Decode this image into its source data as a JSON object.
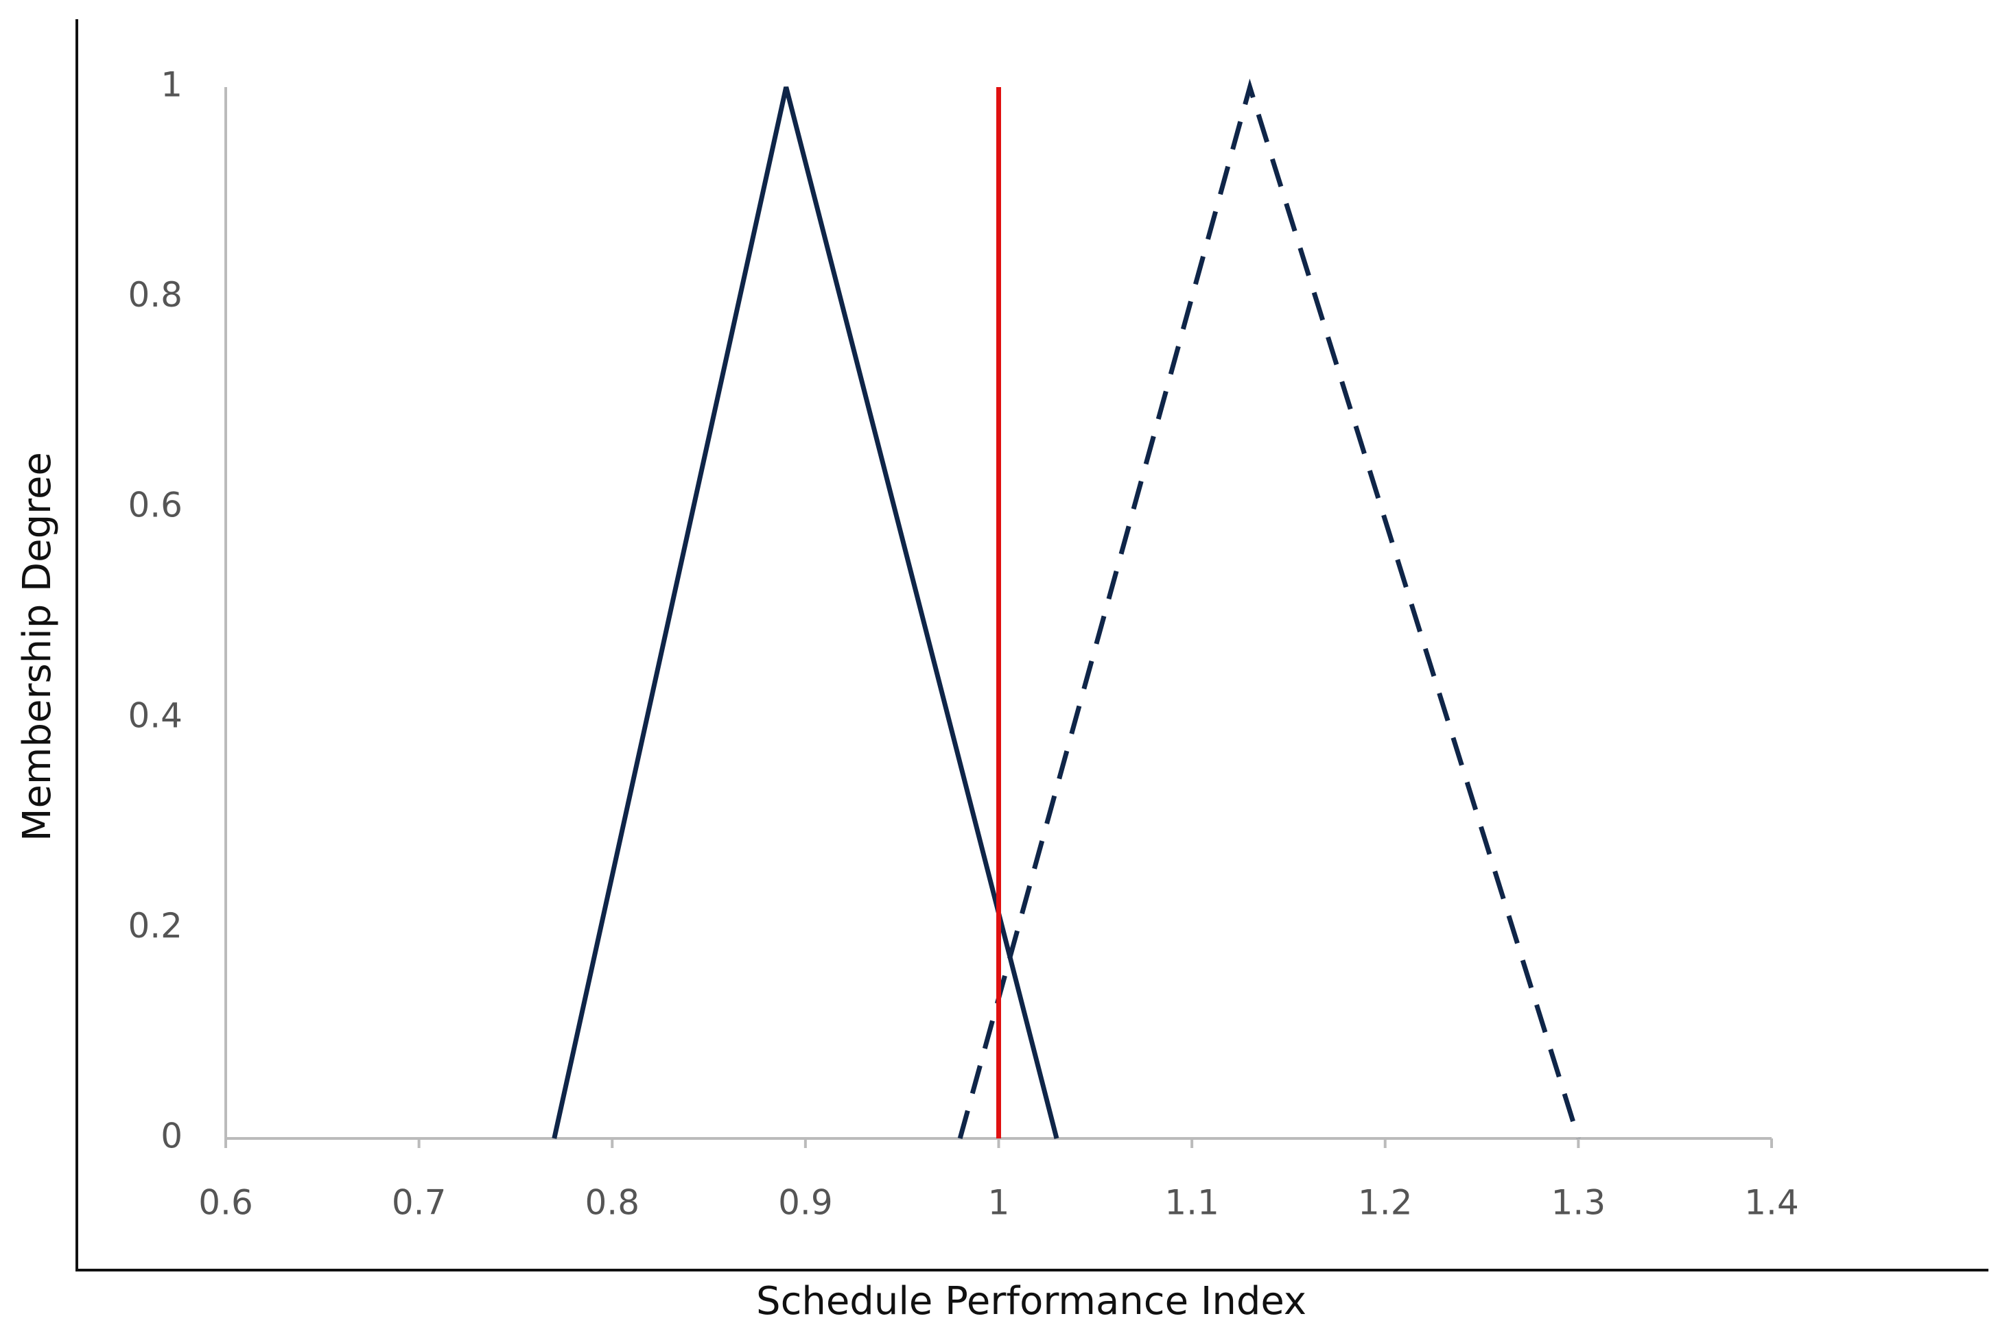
{
  "chart_data": {
    "type": "line",
    "x_label": "Schedule Performance Index",
    "y_label": "Membership Degree",
    "xlim": [
      0.6,
      1.4
    ],
    "xticks": [
      0.6,
      0.7,
      0.8,
      0.9,
      1,
      1.1,
      1.2,
      1.3,
      1.4
    ],
    "ylim": [
      0,
      1
    ],
    "yticks": [
      0,
      0.2,
      0.4,
      0.6,
      0.8,
      1
    ],
    "grid": false,
    "series": [
      {
        "color": "#0f2548",
        "style": "solid",
        "x": [
          0.77,
          0.89,
          1.03
        ],
        "values": [
          0,
          1,
          0
        ]
      },
      {
        "color": "#0f2548",
        "style": "dashed",
        "x": [
          0.98,
          1.13,
          1.3
        ],
        "values": [
          0,
          1,
          0
        ]
      },
      {
        "color": "#e01010",
        "style": "solid",
        "x": [
          1,
          1
        ],
        "values": [
          0,
          1
        ]
      }
    ]
  }
}
